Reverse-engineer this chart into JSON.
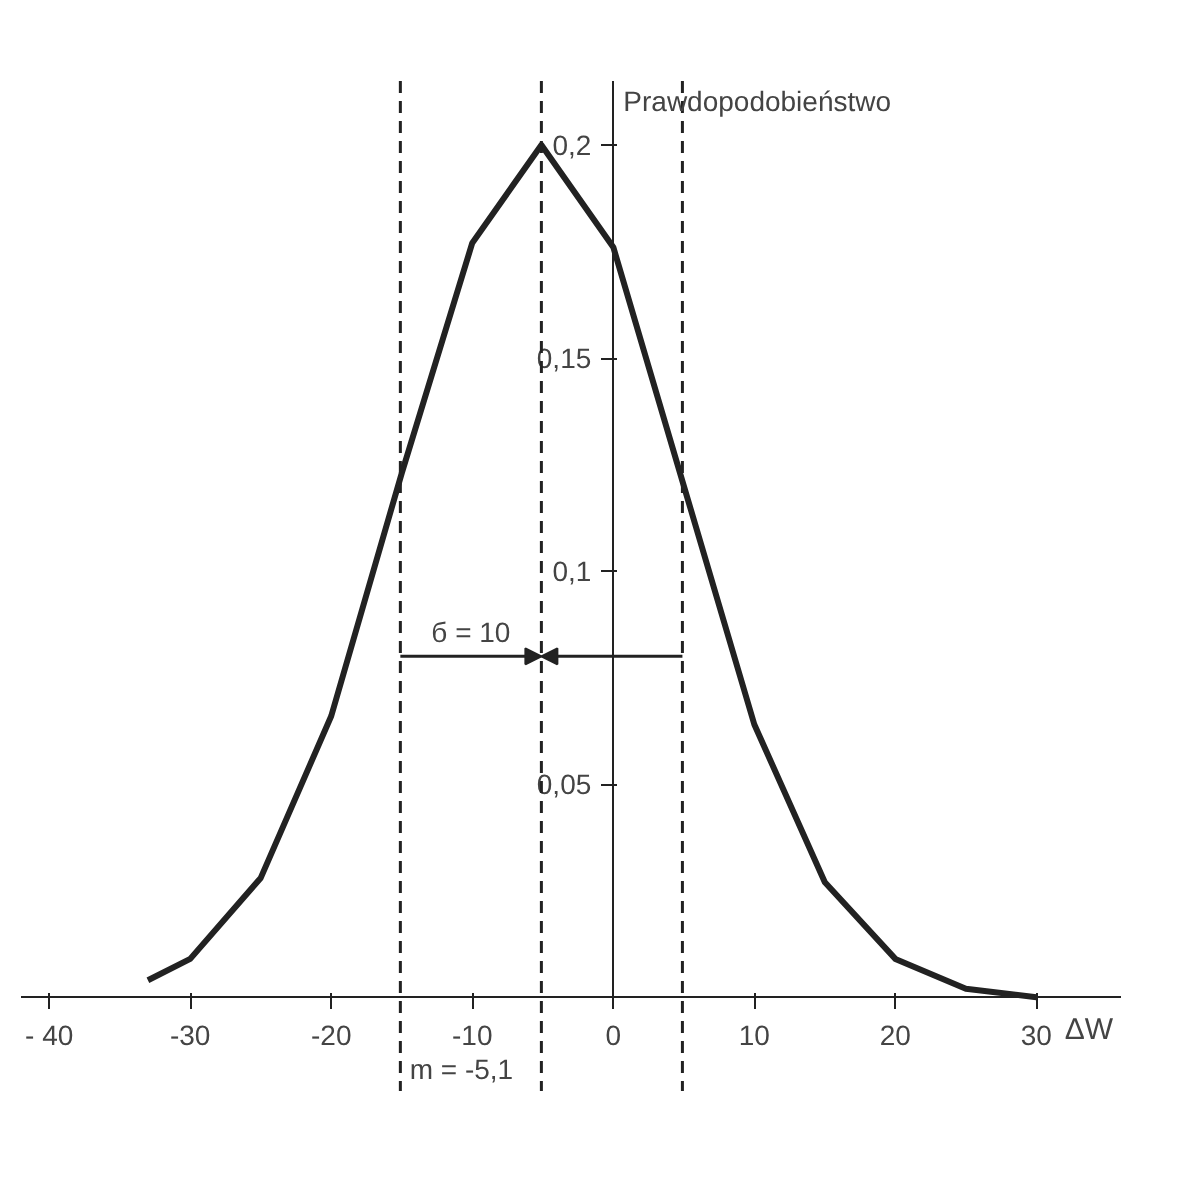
{
  "chart_data": {
    "type": "line",
    "xlabel": "ΔW",
    "ylabel": "Prawdopodobieństwo",
    "x": [
      -33,
      -30,
      -25,
      -20,
      -15,
      -10,
      -5.1,
      0,
      5,
      10,
      15,
      20,
      25,
      30
    ],
    "series": [
      {
        "color": "#222222",
        "values": [
          0.004,
          0.009,
          0.028,
          0.066,
          0.123,
          0.177,
          0.2,
          0.176,
          0.12,
          0.064,
          0.027,
          0.009,
          0.002,
          0.0
        ]
      }
    ],
    "xlim": [
      -42,
      36
    ],
    "ylim": [
      -0.022,
      0.215
    ],
    "xticks": [
      {
        "value": -40,
        "label": "- 40"
      },
      -30,
      -20,
      -10,
      0,
      10,
      20,
      30
    ],
    "yticks": [
      {
        "value": 0.05,
        "label": "0,05"
      },
      {
        "value": 0.1,
        "label": "0,1"
      },
      {
        "value": 0.15,
        "label": "0,15"
      },
      {
        "value": 0.2,
        "label": "0,2"
      }
    ],
    "ref_lines": [
      {
        "axis": "x",
        "value": -15.1,
        "line_style": "dashed"
      },
      {
        "axis": "x",
        "value": -5.1,
        "line_style": "dashed"
      },
      {
        "axis": "x",
        "value": 4.9,
        "line_style": "dashed"
      }
    ],
    "annotations": [
      {
        "text": "б = 10",
        "x": -5.1,
        "y": 0.08
      },
      {
        "text": "m = -5,1",
        "x": -5.1,
        "y": 0
      }
    ],
    "grid": false,
    "marker": "none",
    "line_style": "solid"
  }
}
